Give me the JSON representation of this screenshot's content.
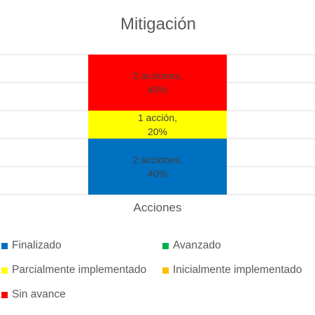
{
  "chart_data": {
    "type": "bar",
    "stacked": true,
    "title": "Mitigación",
    "categories": [
      "Acciones"
    ],
    "series": [
      {
        "name": "Finalizado",
        "color": "#0070C0",
        "values": [
          40
        ],
        "label": [
          "2 acciones,",
          "40%"
        ]
      },
      {
        "name": "Avanzado",
        "color": "#00B050",
        "values": [
          0
        ],
        "label": null
      },
      {
        "name": "Parcialmente implementado",
        "color": "#FFFF00",
        "values": [
          20
        ],
        "label": [
          "1 acción,",
          "20%"
        ]
      },
      {
        "name": "Inicialmente implementado",
        "color": "#FFC000",
        "values": [
          0
        ],
        "label": null
      },
      {
        "name": "Sin avance",
        "color": "#FF0000",
        "values": [
          40
        ],
        "label": [
          "2 acciones,",
          "40%"
        ]
      }
    ],
    "ylim": [
      0,
      100
    ],
    "grid": true,
    "legend_position": "bottom"
  }
}
